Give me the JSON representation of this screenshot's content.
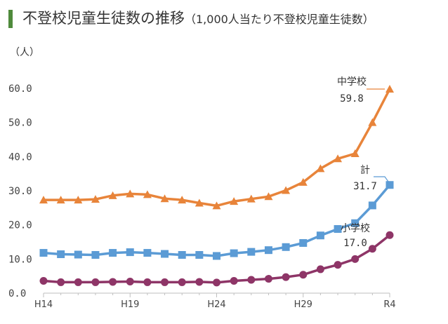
{
  "title": {
    "main": "不登校児童生徒数の推移",
    "sub": "（1,000人当たり不登校児童生徒数）"
  },
  "chart_data": {
    "type": "line",
    "ylabel": "（人）",
    "ylim": [
      0,
      60
    ],
    "yticks": [
      "0.0",
      "10.0",
      "20.0",
      "30.0",
      "40.0",
      "50.0",
      "60.0"
    ],
    "ytick_values": [
      0,
      10,
      20,
      30,
      40,
      50,
      60
    ],
    "x": [
      "H14",
      "H15",
      "H16",
      "H17",
      "H18",
      "H19",
      "H20",
      "H21",
      "H22",
      "H23",
      "H24",
      "H25",
      "H26",
      "H27",
      "H28",
      "H29",
      "H30",
      "R1",
      "R2",
      "R3",
      "R4"
    ],
    "xtick_labels": [
      "H14",
      "H19",
      "H24",
      "H29",
      "R4"
    ],
    "series": [
      {
        "name": "中学校",
        "color": "#e8843a",
        "marker": "triangle",
        "values": [
          27.3,
          27.3,
          27.3,
          27.5,
          28.6,
          29.1,
          28.9,
          27.7,
          27.3,
          26.4,
          25.6,
          26.9,
          27.6,
          28.3,
          30.1,
          32.5,
          36.5,
          39.4,
          40.9,
          50.0,
          59.8
        ]
      },
      {
        "name": "計",
        "color": "#5b9bd5",
        "marker": "square",
        "values": [
          11.8,
          11.4,
          11.3,
          11.2,
          11.8,
          12.0,
          11.8,
          11.5,
          11.2,
          11.2,
          10.9,
          11.7,
          12.1,
          12.6,
          13.5,
          14.7,
          16.9,
          18.8,
          20.5,
          25.7,
          31.7
        ]
      },
      {
        "name": "小学校",
        "color": "#8e3567",
        "marker": "circle",
        "values": [
          3.6,
          3.2,
          3.2,
          3.2,
          3.3,
          3.4,
          3.2,
          3.2,
          3.2,
          3.3,
          3.1,
          3.6,
          3.9,
          4.2,
          4.7,
          5.4,
          7.0,
          8.3,
          10.0,
          13.0,
          17.0
        ]
      }
    ],
    "annotations": [
      {
        "series": "中学校",
        "name": "中学校",
        "value": "59.8"
      },
      {
        "series": "計",
        "name": "計",
        "value": "31.7"
      },
      {
        "series": "小学校",
        "name": "小学校",
        "value": "17.0"
      }
    ]
  }
}
